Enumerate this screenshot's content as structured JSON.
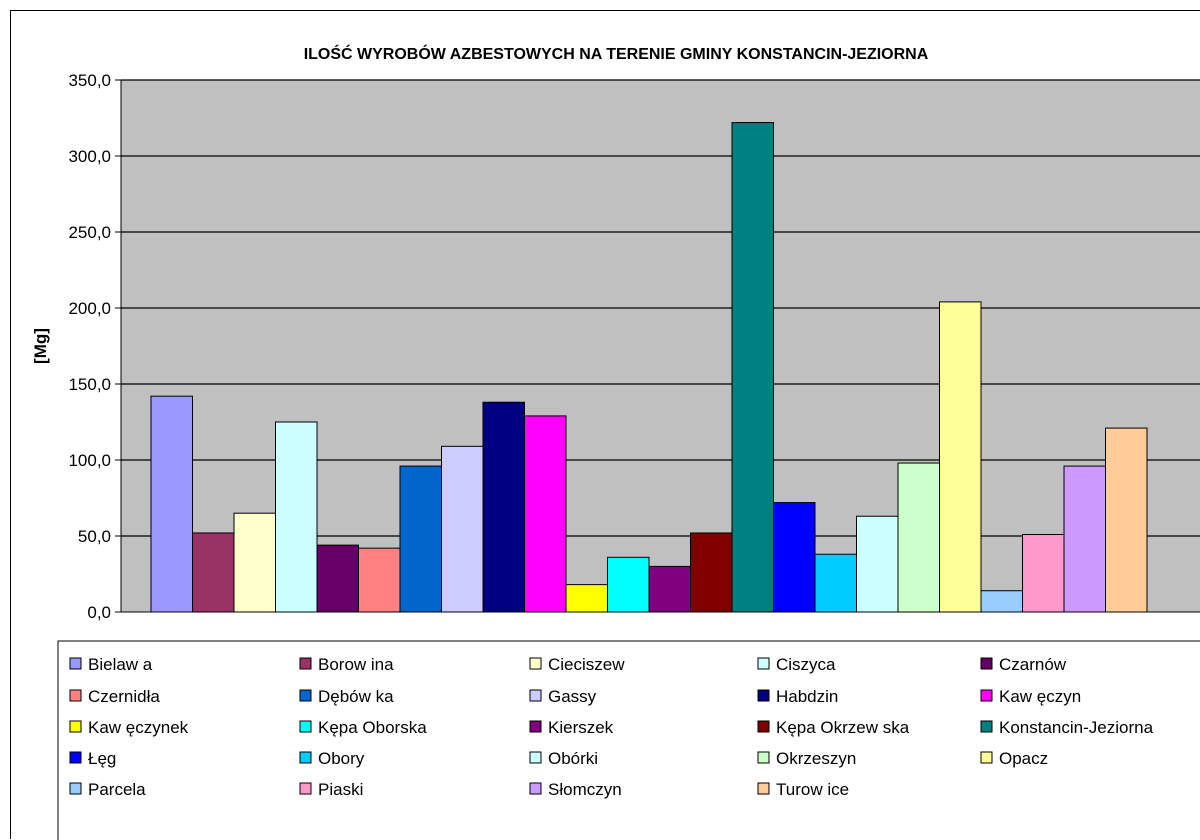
{
  "chart_data": {
    "type": "bar",
    "title": "ILOŚĆ WYROBÓW AZBESTOWYCH NA TERENIE GMINY KONSTANCIN-JEZIORNA",
    "xlabel": "",
    "ylabel": "[Mg]",
    "ylim": [
      0,
      350
    ],
    "yticks": [
      "0,0",
      "50,0",
      "100,0",
      "150,0",
      "200,0",
      "250,0",
      "300,0",
      "350,0"
    ],
    "grid": true,
    "legend_position": "bottom",
    "plot_background": "#c0c0c0",
    "series": [
      {
        "name": "Bielaw a",
        "value": 142,
        "color": "#9999ff"
      },
      {
        "name": "Borow ina",
        "value": 52,
        "color": "#993366"
      },
      {
        "name": "Cieciszew",
        "value": 65,
        "color": "#ffffcc"
      },
      {
        "name": "Ciszyca",
        "value": 125,
        "color": "#ccffff"
      },
      {
        "name": "Czarnów",
        "value": 44,
        "color": "#660066"
      },
      {
        "name": "Czernidła",
        "value": 42,
        "color": "#ff8080"
      },
      {
        "name": "Dębów ka",
        "value": 96,
        "color": "#0066cc"
      },
      {
        "name": "Gassy",
        "value": 109,
        "color": "#ccccff"
      },
      {
        "name": "Habdzin",
        "value": 138,
        "color": "#000080"
      },
      {
        "name": "Kaw ęczyn",
        "value": 129,
        "color": "#ff00ff"
      },
      {
        "name": "Kaw ęczynek",
        "value": 18,
        "color": "#ffff00"
      },
      {
        "name": "Kępa Oborska",
        "value": 36,
        "color": "#00ffff"
      },
      {
        "name": "Kierszek",
        "value": 30,
        "color": "#800080"
      },
      {
        "name": "Kępa Okrzew ska",
        "value": 52,
        "color": "#800000"
      },
      {
        "name": "Konstancin-Jeziorna",
        "value": 322,
        "color": "#008080"
      },
      {
        "name": "Łęg",
        "value": 72,
        "color": "#0000ff"
      },
      {
        "name": "Obory",
        "value": 38,
        "color": "#00ccff"
      },
      {
        "name": "Obórki",
        "value": 63,
        "color": "#ccffff"
      },
      {
        "name": "Okrzeszyn",
        "value": 98,
        "color": "#ccffcc"
      },
      {
        "name": "Opacz",
        "value": 204,
        "color": "#ffff99"
      },
      {
        "name": "Parcela",
        "value": 14,
        "color": "#99ccff"
      },
      {
        "name": "Piaski",
        "value": 51,
        "color": "#ff99cc"
      },
      {
        "name": "Słomczyn",
        "value": 96,
        "color": "#cc99ff"
      },
      {
        "name": "Turow ice",
        "value": 121,
        "color": "#ffcc99"
      }
    ]
  }
}
